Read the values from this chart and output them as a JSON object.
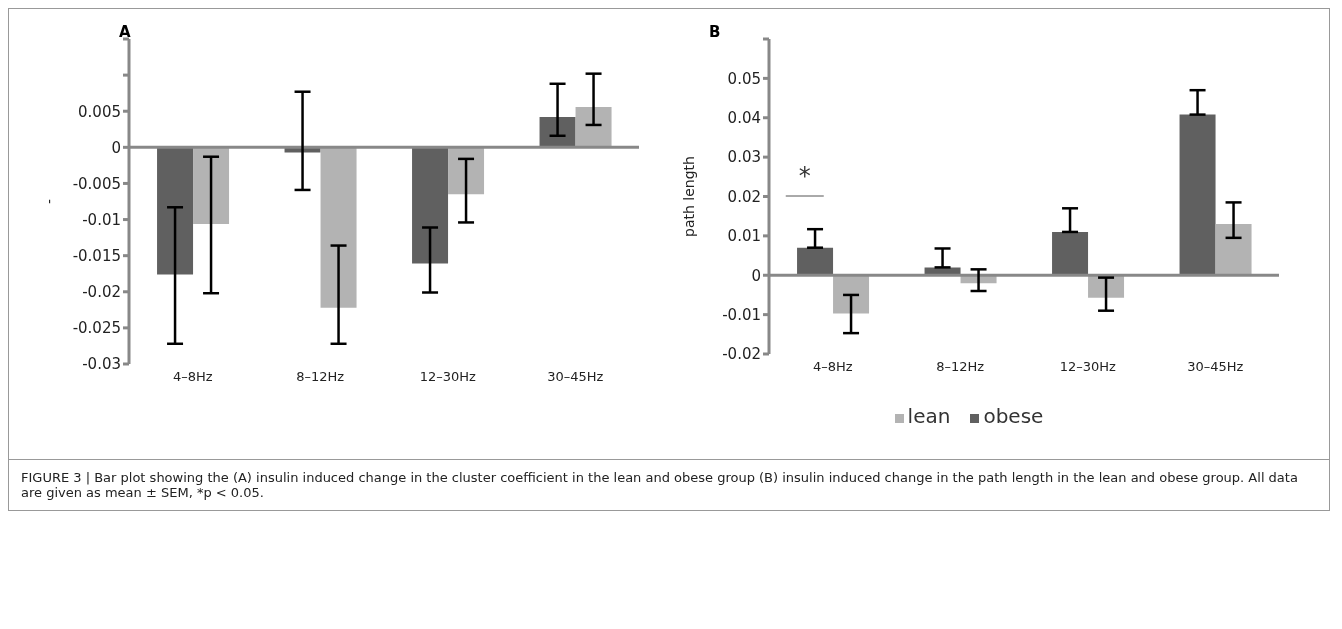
{
  "chart_data": [
    {
      "type": "bar",
      "title": "A",
      "ylabel": "-",
      "categories": [
        "4–8Hz",
        "8–12Hz",
        "12–30Hz",
        "30–45Hz"
      ],
      "series": [
        {
          "color": "#606060",
          "values": [
            -0.0176,
            -0.0007,
            -0.0161,
            0.0042
          ],
          "errors": [
            [
              -0.0272,
              -0.0083
            ],
            [
              -0.0059,
              0.0077
            ],
            [
              -0.0201,
              -0.0111
            ],
            [
              0.0016,
              0.0088
            ]
          ]
        },
        {
          "color": "#b3b3b3",
          "values": [
            -0.0106,
            -0.0222,
            -0.0065,
            0.0056
          ],
          "errors": [
            [
              -0.0202,
              -0.0013
            ],
            [
              -0.0272,
              -0.0136
            ],
            [
              -0.0104,
              -0.0016
            ],
            [
              0.0031,
              0.0102
            ]
          ]
        }
      ],
      "ylim": [
        -0.03,
        0.015
      ],
      "yticks": [
        -0.03,
        -0.025,
        -0.02,
        -0.015,
        -0.01,
        -0.005,
        0,
        0.005,
        {
          "value": 0.01,
          "label": null
        },
        {
          "value": 0.015,
          "label": null
        }
      ],
      "annotations": [
        "FIGURE 3 | Bar plot showing the (A) insulin induced change in the cluster coefficient in the lean and obese group (B) insulin induced change in the path length in the lean and obese group. All data are given as mean ± SEM, *p < 0.05."
      ]
    },
    {
      "type": "bar",
      "title": "B",
      "ylabel": "path length",
      "categories": [
        "4–8Hz",
        "8–12Hz",
        "12–30Hz",
        "30–45Hz"
      ],
      "series": [
        {
          "name": "obese",
          "color": "#606060",
          "values": [
            0.007,
            0.002,
            0.011,
            0.0408
          ],
          "errors": [
            [
              0.007,
              0.0117
            ],
            [
              0.002,
              0.0068
            ],
            [
              0.011,
              0.017
            ],
            [
              0.0408,
              0.047
            ]
          ]
        },
        {
          "name": "lean",
          "color": "#b3b3b3",
          "values": [
            -0.0097,
            -0.002,
            -0.0057,
            0.013
          ],
          "errors": [
            [
              -0.0147,
              -0.005
            ],
            [
              -0.004,
              0.0015
            ],
            [
              -0.009,
              -0.0006
            ],
            [
              0.0095,
              0.0185
            ]
          ]
        }
      ],
      "ylim": [
        -0.02,
        0.06
      ],
      "yticks": [
        -0.02,
        -0.01,
        0,
        0.01,
        0.02,
        0.03,
        0.04,
        0.05,
        {
          "value": 0.06,
          "label": null
        }
      ],
      "legend": "bottom",
      "annotations": [
        "*"
      ]
    }
  ]
}
